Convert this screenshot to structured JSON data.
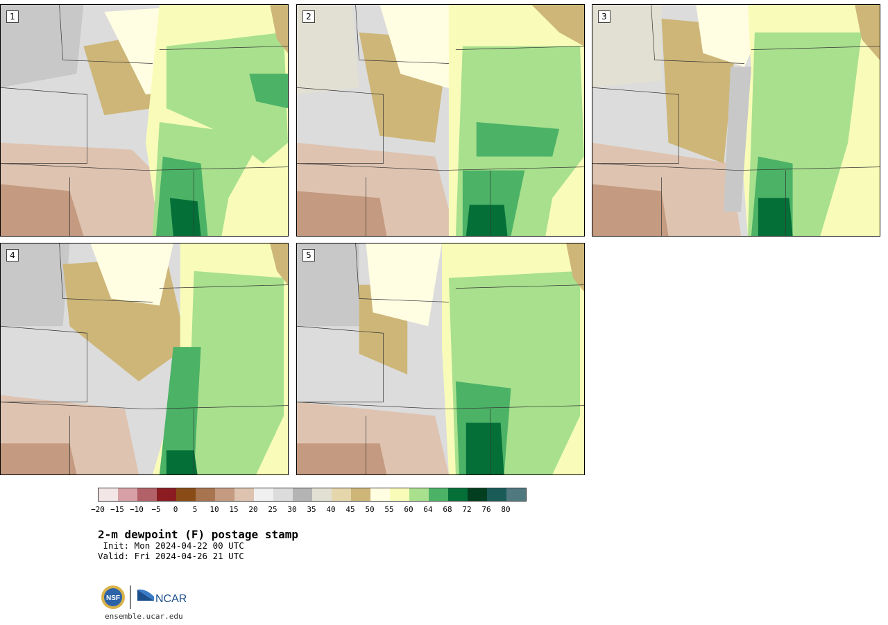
{
  "panels": [
    {
      "label": "1"
    },
    {
      "label": "2"
    },
    {
      "label": "3"
    },
    {
      "label": "4"
    },
    {
      "label": "5"
    }
  ],
  "colorbar": {
    "ticks": [
      "−20",
      "−15",
      "−10",
      "−5",
      "0",
      "5",
      "10",
      "15",
      "20",
      "25",
      "30",
      "35",
      "40",
      "45",
      "50",
      "55",
      "60",
      "64",
      "68",
      "72",
      "76",
      "80"
    ],
    "colors": [
      "#f2e6e6",
      "#d6a0a6",
      "#b36168",
      "#8a1c22",
      "#8a4c16",
      "#a87450",
      "#c49a80",
      "#dec3b0",
      "#f0f0f0",
      "#dcdcdc",
      "#b4b4b4",
      "#e2e0d2",
      "#e6d6ac",
      "#cdb678",
      "#fffde2",
      "#f8fcb8",
      "#a8e08e",
      "#4cb266",
      "#047038",
      "#033e20",
      "#1a5b58",
      "#50797f"
    ]
  },
  "title": "2-m dewpoint (F) postage stamp",
  "init": " Init: Mon 2024-04-22 00 UTC",
  "valid": "Valid: Fri 2024-04-26 21 UTC",
  "logos": {
    "nsf": "NSF",
    "ncar": "NCAR"
  },
  "url": "ensemble.ucar.edu"
}
